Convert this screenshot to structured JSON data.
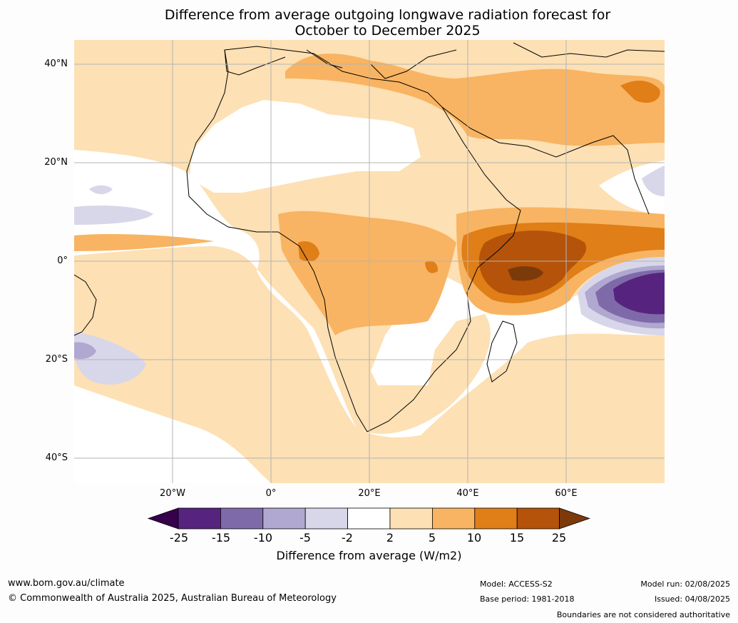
{
  "title_line1": "Difference from average outgoing longwave radiation forecast for",
  "title_line2": "October to December 2025",
  "lat_labels": [
    "40°N",
    "20°N",
    "0°",
    "20°S",
    "40°S"
  ],
  "lon_labels": [
    "20°W",
    "0°",
    "20°E",
    "40°E",
    "60°E"
  ],
  "colorbar": {
    "title": "Difference from average (W/m2)",
    "ticks": [
      "-25",
      "-15",
      "-10",
      "-5",
      "-2",
      "2",
      "5",
      "10",
      "15",
      "25"
    ],
    "colors": [
      "#36004d",
      "#56247f",
      "#7f6aa9",
      "#b0a8d0",
      "#d8d7ea",
      "#ffffff",
      "#fde0b4",
      "#f8b462",
      "#e07e17",
      "#b45309",
      "#7c3a0b"
    ]
  },
  "footer": {
    "site": "www.bom.gov.au/climate",
    "copyright": "© Commonwealth of Australia 2025, Australian Bureau of Meteorology",
    "model": "Model: ACCESS-S2",
    "base_period": "Base period: 1981-2018",
    "model_run": "Model run: 02/08/2025",
    "issued": "Issued: 04/08/2025",
    "disclaimer": "Boundaries are not considered authoritative"
  }
}
